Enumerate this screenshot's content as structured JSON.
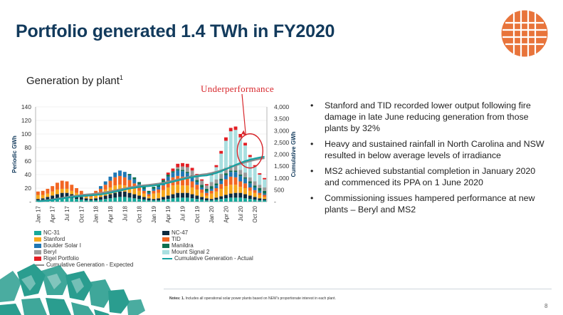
{
  "title": "Portfolio generated 1.4 TWh in FY2020",
  "subtitle": "Generation by plant",
  "subtitle_sup": "1",
  "annotation": "Underperformance",
  "bullets": [
    "Stanford and TID recorded lower output following fire damage in late June reducing generation from those plants by 32%",
    "Heavy and sustained rainfall in North Carolina and NSW resulted in below average levels of irradiance",
    "MS2 achieved substantial completion in January 2020 and commenced its PPA on 1 June 2020",
    "Commissioning issues hampered performance at new plants – Beryl and MS2"
  ],
  "notes_label": "Notes: 1.",
  "notes_text": "Includes all operational solar power plants based on NEW's proportionate interest in each plant.",
  "page_number": "8",
  "colors": {
    "title": "#123a5c",
    "accent": "#e8743b",
    "annotation": "#d7262b",
    "deco": "#2a9d8f"
  },
  "chart_data": {
    "type": "bar",
    "title": "Generation by plant",
    "ylabel": "Periodic GWh",
    "y2label": "Cumulative GWh",
    "ylim": [
      0,
      140
    ],
    "y2lim": [
      0,
      4000
    ],
    "yticks": [
      "-",
      "20",
      "40",
      "60",
      "80",
      "100",
      "120",
      "140"
    ],
    "y2ticks": [
      "-",
      "500",
      "1,000",
      "1,500",
      "2,000",
      "2,500",
      "3,000",
      "3,500",
      "4,000"
    ],
    "categories": [
      "Jan 17",
      "Feb 17",
      "Mar 17",
      "Apr 17",
      "May 17",
      "Jun 17",
      "Jul 17",
      "Aug 17",
      "Sep 17",
      "Oct 17",
      "Nov 17",
      "Dec 17",
      "Jan 18",
      "Feb 18",
      "Mar 18",
      "Apr 18",
      "May 18",
      "Jun 18",
      "Jul 18",
      "Aug 18",
      "Sep 18",
      "Oct 18",
      "Nov 18",
      "Dec 18",
      "Jan 19",
      "Feb 19",
      "Mar 19",
      "Apr 19",
      "May 19",
      "Jun 19",
      "Jul 19",
      "Aug 19",
      "Sep 19",
      "Oct 19",
      "Nov 19",
      "Dec 19",
      "Jan 20",
      "Feb 20",
      "Mar 20",
      "Apr 20",
      "May 20",
      "Jun 20",
      "Jul 20",
      "Aug 20",
      "Sep 20",
      "Oct 20",
      "Nov 20",
      "Dec 20"
    ],
    "xtick_labels": [
      "Jan 17",
      "Apr 17",
      "Jul 17",
      "Oct 17",
      "Jan 18",
      "Apr 18",
      "Jul 18",
      "Oct 18",
      "Jan 19",
      "Apr 19",
      "Jul 19",
      "Oct 19",
      "Jan 20",
      "Apr 20",
      "Jul 20",
      "Oct 20"
    ],
    "series": [
      {
        "name": "NC-31",
        "color": "#17a99a",
        "values": [
          2,
          2,
          3,
          4,
          5,
          6,
          6,
          5,
          4,
          3,
          2,
          2,
          2,
          3,
          4,
          5,
          6,
          7,
          7,
          6,
          5,
          4,
          3,
          2,
          2,
          2,
          3,
          4,
          5,
          6,
          6,
          6,
          5,
          4,
          3,
          2,
          2,
          3,
          4,
          5,
          6,
          6,
          6,
          5,
          4,
          3,
          2,
          2
        ]
      },
      {
        "name": "NC-47",
        "color": "#0e2a3f",
        "values": [
          2,
          3,
          4,
          5,
          6,
          7,
          7,
          6,
          5,
          4,
          3,
          2,
          3,
          4,
          5,
          6,
          7,
          8,
          8,
          7,
          6,
          5,
          4,
          3,
          2,
          3,
          4,
          5,
          6,
          7,
          7,
          7,
          6,
          5,
          4,
          3,
          2,
          3,
          4,
          5,
          6,
          7,
          7,
          6,
          5,
          4,
          3,
          2
        ]
      },
      {
        "name": "Stanford",
        "color": "#f7a81b",
        "values": [
          6,
          5,
          5,
          6,
          7,
          6,
          6,
          5,
          4,
          3,
          2,
          3,
          7,
          7,
          9,
          10,
          11,
          10,
          9,
          9,
          8,
          7,
          5,
          3,
          8,
          8,
          10,
          12,
          13,
          12,
          11,
          11,
          10,
          9,
          6,
          4,
          8,
          9,
          11,
          13,
          13,
          12,
          9,
          9,
          7,
          6,
          5,
          3
        ]
      },
      {
        "name": "TID",
        "color": "#f26522",
        "values": [
          5,
          6,
          7,
          8,
          10,
          12,
          11,
          9,
          7,
          6,
          4,
          3,
          4,
          5,
          7,
          10,
          12,
          13,
          12,
          10,
          8,
          6,
          4,
          3,
          4,
          5,
          7,
          10,
          12,
          13,
          13,
          11,
          9,
          7,
          5,
          4,
          4,
          5,
          7,
          10,
          12,
          11,
          8,
          7,
          5,
          4,
          3,
          3
        ]
      },
      {
        "name": "Boulder Solar I",
        "color": "#1f77b4",
        "values": [
          0,
          0,
          0,
          0,
          0,
          0,
          0,
          0,
          0,
          0,
          0,
          0,
          0,
          4,
          5,
          6,
          7,
          8,
          8,
          7,
          6,
          4,
          3,
          2,
          3,
          4,
          5,
          6,
          7,
          8,
          8,
          7,
          6,
          4,
          3,
          2,
          3,
          4,
          5,
          6,
          7,
          8,
          8,
          7,
          6,
          4,
          3,
          2
        ]
      },
      {
        "name": "Manildra",
        "color": "#0e6f4f",
        "values": [
          0,
          0,
          0,
          0,
          0,
          0,
          0,
          0,
          0,
          0,
          0,
          0,
          0,
          0,
          0,
          0,
          0,
          0,
          0,
          2,
          3,
          3,
          4,
          3,
          3,
          3,
          3,
          3,
          2,
          2,
          2,
          2,
          3,
          3,
          4,
          4,
          4,
          3,
          3,
          3,
          2,
          2,
          2,
          2,
          3,
          3,
          4,
          4
        ]
      },
      {
        "name": "Beryl",
        "color": "#9b9b9b",
        "values": [
          0,
          0,
          0,
          0,
          0,
          0,
          0,
          0,
          0,
          0,
          0,
          0,
          0,
          0,
          0,
          0,
          0,
          0,
          0,
          0,
          0,
          0,
          0,
          0,
          0,
          0,
          0,
          0,
          0,
          3,
          5,
          7,
          7,
          6,
          6,
          5,
          6,
          6,
          7,
          8,
          8,
          8,
          7,
          7,
          6,
          6,
          5,
          5
        ]
      },
      {
        "name": "Mount Signal 2",
        "color": "#a9dfe0",
        "values": [
          0,
          0,
          0,
          0,
          0,
          0,
          0,
          0,
          0,
          0,
          0,
          0,
          0,
          0,
          0,
          0,
          0,
          0,
          0,
          0,
          0,
          0,
          0,
          0,
          0,
          0,
          0,
          0,
          0,
          0,
          0,
          0,
          0,
          0,
          0,
          0,
          10,
          18,
          30,
          40,
          50,
          52,
          48,
          40,
          30,
          22,
          15,
          12
        ]
      },
      {
        "name": "Rigel Portfolio",
        "color": "#e31e24",
        "values": [
          0,
          0,
          0,
          0,
          0,
          0,
          0,
          0,
          0,
          0,
          0,
          0,
          0,
          0,
          0,
          0,
          0,
          0,
          0,
          0,
          0,
          0,
          0,
          0,
          0,
          0,
          2,
          3,
          4,
          5,
          5,
          5,
          4,
          3,
          2,
          2,
          2,
          3,
          4,
          5,
          5,
          5,
          5,
          4,
          3,
          2,
          2,
          2
        ]
      }
    ],
    "lines": [
      {
        "name": "Cumulative Generation - Expected",
        "color": "#8c8c8c",
        "axis": "y2",
        "values": [
          22,
          44,
          68,
          96,
          128,
          162,
          196,
          228,
          257,
          282,
          303,
          322,
          344,
          370,
          400,
          436,
          477,
          520,
          563,
          603,
          638,
          668,
          692,
          712,
          736,
          764,
          798,
          839,
          886,
          937,
          987,
          1035,
          1078,
          1115,
          1145,
          1171,
          1213,
          1263,
          1322,
          1388,
          1458,
          1528,
          1596,
          1659,
          1715,
          1763,
          1802,
          1835
        ]
      },
      {
        "name": "Cumulative Generation - Actual",
        "color": "#16a2a2",
        "axis": "y2",
        "values": [
          15,
          31,
          50,
          74,
          102,
          133,
          164,
          192,
          217,
          237,
          254,
          268,
          285,
          308,
          340,
          378,
          421,
          467,
          511,
          552,
          589,
          619,
          642,
          658,
          684,
          713,
          751,
          795,
          844,
          897,
          948,
          995,
          1035,
          1068,
          1093,
          1111,
          1155,
          1212,
          1285,
          1371,
          1462,
          1552,
          1636,
          1710,
          1774,
          1826,
          1866,
          1901
        ]
      }
    ],
    "legend_placement": "bottom"
  }
}
